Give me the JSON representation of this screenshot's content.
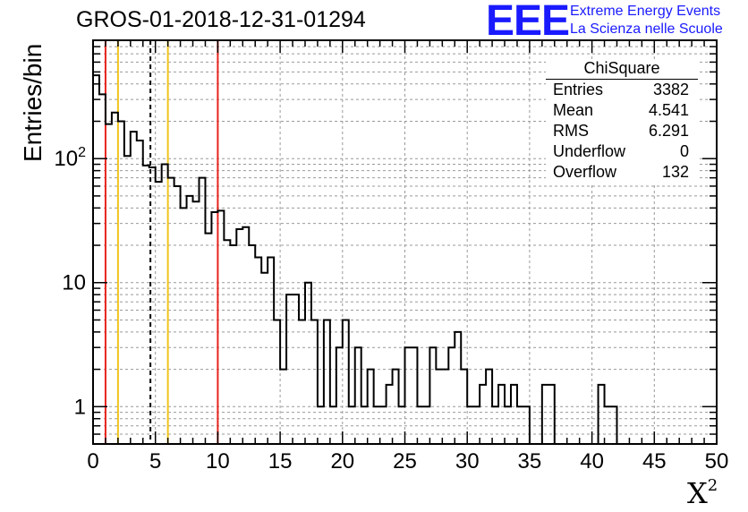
{
  "header": {
    "run_id": "GROS-01-2018-12-31-01294",
    "logo_mark": "EEE",
    "logo_line1": "Extreme Energy Events",
    "logo_line2": "La Scienza nelle Scuole"
  },
  "stats_box": {
    "title": "ChiSquare",
    "rows": [
      {
        "label": "Entries",
        "value": "3382"
      },
      {
        "label": "Mean",
        "value": "4.541"
      },
      {
        "label": "RMS",
        "value": "6.291"
      },
      {
        "label": "Underflow",
        "value": "0"
      },
      {
        "label": "Overflow",
        "value": "132"
      }
    ]
  },
  "axes": {
    "ylabel": "Entries/bin",
    "xlabel_base": "X",
    "xlabel_sup": "2"
  },
  "colors": {
    "red_line": "#e8241c",
    "yellow_line": "#f0c419",
    "logo_blue": "#1a1aff",
    "histogram": "#000000"
  },
  "chart_data": {
    "type": "histogram",
    "title": "GROS-01-2018-12-31-01294",
    "xlabel": "X²",
    "ylabel": "Entries/bin",
    "yscale": "log",
    "xlim": [
      0,
      50
    ],
    "ylim": [
      0.5,
      900
    ],
    "grid": true,
    "bin_width": 0.5,
    "x_tick_labels": [
      "0",
      "5",
      "10",
      "15",
      "20",
      "25",
      "30",
      "35",
      "40",
      "45",
      "50"
    ],
    "x_ticks": [
      0,
      5,
      10,
      15,
      20,
      25,
      30,
      35,
      40,
      45,
      50
    ],
    "y_tick_labels": [
      "1",
      "10",
      "10^2"
    ],
    "y_ticks": [
      1,
      10,
      100
    ],
    "counts": [
      470,
      330,
      190,
      235,
      200,
      105,
      165,
      140,
      88,
      85,
      65,
      90,
      70,
      60,
      40,
      50,
      45,
      70,
      25,
      37,
      38,
      22,
      20,
      27,
      28,
      20,
      16,
      12,
      16,
      5,
      2,
      8,
      8,
      5,
      10,
      5,
      1,
      5,
      1,
      3,
      5,
      1,
      3,
      1,
      2,
      1,
      1,
      1.5,
      2,
      1,
      3,
      3,
      1,
      1,
      3,
      2,
      2,
      3,
      4,
      2,
      1,
      1,
      1.5,
      2,
      1,
      1.5,
      1,
      1.5,
      1,
      1,
      0,
      0,
      1.5,
      1.5,
      0,
      0,
      0,
      0,
      0,
      0,
      0,
      1.5,
      1,
      1,
      0,
      0,
      0,
      0,
      0,
      0,
      0,
      0,
      0,
      0,
      0,
      0,
      0,
      0,
      0,
      0
    ],
    "vertical_lines": [
      {
        "x": 1.0,
        "color": "red",
        "style": "solid"
      },
      {
        "x": 2.0,
        "color": "yellow",
        "style": "solid"
      },
      {
        "x": 4.6,
        "color": "black",
        "style": "dashed"
      },
      {
        "x": 6.0,
        "color": "yellow",
        "style": "solid"
      },
      {
        "x": 10.0,
        "color": "red",
        "style": "solid"
      }
    ],
    "stats": {
      "Entries": 3382,
      "Mean": 4.541,
      "RMS": 6.291,
      "Underflow": 0,
      "Overflow": 132
    }
  }
}
